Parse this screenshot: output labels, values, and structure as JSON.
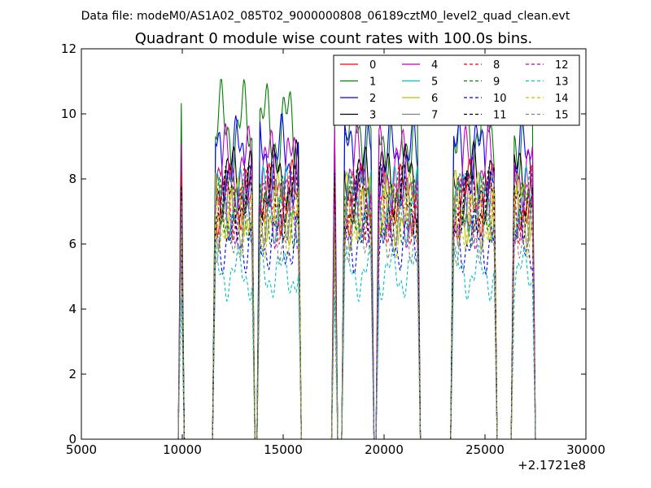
{
  "figure": {
    "suptitle": "Data file: modeM0/AS1A02_085T02_9000000808_06189cztM0_level2_quad_clean.evt"
  },
  "chart_data": {
    "type": "line",
    "title": "Quadrant 0 module wise count rates with 100.0s bins.",
    "xlabel": "",
    "ylabel": "",
    "xlim": [
      5000,
      30000
    ],
    "ylim": [
      0,
      12
    ],
    "x_offset_text": "+2.1721e8",
    "x_ticks": [
      "5000",
      "10000",
      "15000",
      "20000",
      "25000",
      "30000"
    ],
    "y_ticks": [
      "0",
      "2",
      "4",
      "6",
      "8",
      "10",
      "12"
    ],
    "grid": false,
    "legend_position": "top-right",
    "legend_columns": 4,
    "bins_s": 100.0,
    "on_segments": [
      {
        "start": 9800,
        "end": 10100
      },
      {
        "start": 11500,
        "end": 13600
      },
      {
        "start": 13700,
        "end": 15900
      },
      {
        "start": 17400,
        "end": 17700
      },
      {
        "start": 17900,
        "end": 19500
      },
      {
        "start": 19600,
        "end": 21800
      },
      {
        "start": 23300,
        "end": 25600
      },
      {
        "start": 26300,
        "end": 27500
      }
    ],
    "series": [
      {
        "name": "0",
        "color": "#ff0000",
        "style": "solid",
        "level": 7.4
      },
      {
        "name": "1",
        "color": "#008000",
        "style": "solid",
        "level": 9.5
      },
      {
        "name": "2",
        "color": "#0000ff",
        "style": "solid",
        "level": 8.6
      },
      {
        "name": "3",
        "color": "#000000",
        "style": "solid",
        "level": 7.9
      },
      {
        "name": "4",
        "color": "#bf00bf",
        "style": "solid",
        "level": 8.3
      },
      {
        "name": "5",
        "color": "#00bfbf",
        "style": "solid",
        "level": 7.2
      },
      {
        "name": "6",
        "color": "#bfbf00",
        "style": "solid",
        "level": 7.1
      },
      {
        "name": "7",
        "color": "#808080",
        "style": "solid",
        "level": 7.0
      },
      {
        "name": "8",
        "color": "#ff0000",
        "style": "dashed",
        "level": 7.2
      },
      {
        "name": "9",
        "color": "#008000",
        "style": "dashed",
        "level": 7.0
      },
      {
        "name": "10",
        "color": "#0000ff",
        "style": "dashed",
        "level": 6.1
      },
      {
        "name": "11",
        "color": "#000000",
        "style": "dashed",
        "level": 7.3
      },
      {
        "name": "12",
        "color": "#bf00bf",
        "style": "dashed",
        "level": 6.9
      },
      {
        "name": "13",
        "color": "#00bfbf",
        "style": "dashed",
        "level": 5.1
      },
      {
        "name": "14",
        "color": "#bfbf00",
        "style": "dashed",
        "level": 6.7
      },
      {
        "name": "15",
        "color": "#808080",
        "style": "dashed",
        "level": 6.4
      }
    ]
  }
}
